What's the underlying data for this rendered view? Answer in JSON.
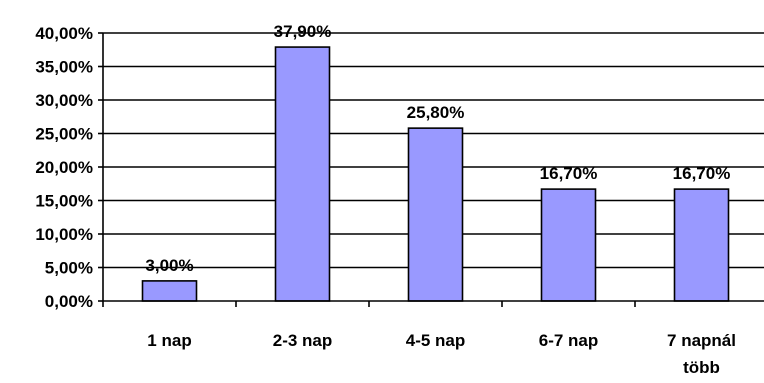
{
  "chart_data": {
    "type": "bar",
    "categories": [
      "1 nap",
      "2-3 nap",
      "4-5 nap",
      "6-7 nap",
      "7 napnál többb"
    ],
    "category_lines": [
      [
        "1 nap"
      ],
      [
        "2-3 nap"
      ],
      [
        "4-5 nap"
      ],
      [
        "6-7 nap"
      ],
      [
        "7 napnál",
        "több"
      ]
    ],
    "values": [
      3.0,
      37.9,
      25.8,
      16.7,
      16.7
    ],
    "data_labels": [
      "3,00%",
      "37,90%",
      "25,80%",
      "16,70%",
      "16,70%"
    ],
    "y_ticks": [
      "0,00%",
      "5,00%",
      "10,00%",
      "15,00%",
      "20,00%",
      "25,00%",
      "30,00%",
      "35,00%",
      "40,00%"
    ],
    "ylim": [
      0,
      40
    ],
    "ytick_step": 5,
    "grid": true,
    "legend": "none",
    "colors": {
      "bar_fill": "#9999ff",
      "bar_stroke": "#000000",
      "grid": "#000000",
      "axis": "#000000"
    }
  }
}
